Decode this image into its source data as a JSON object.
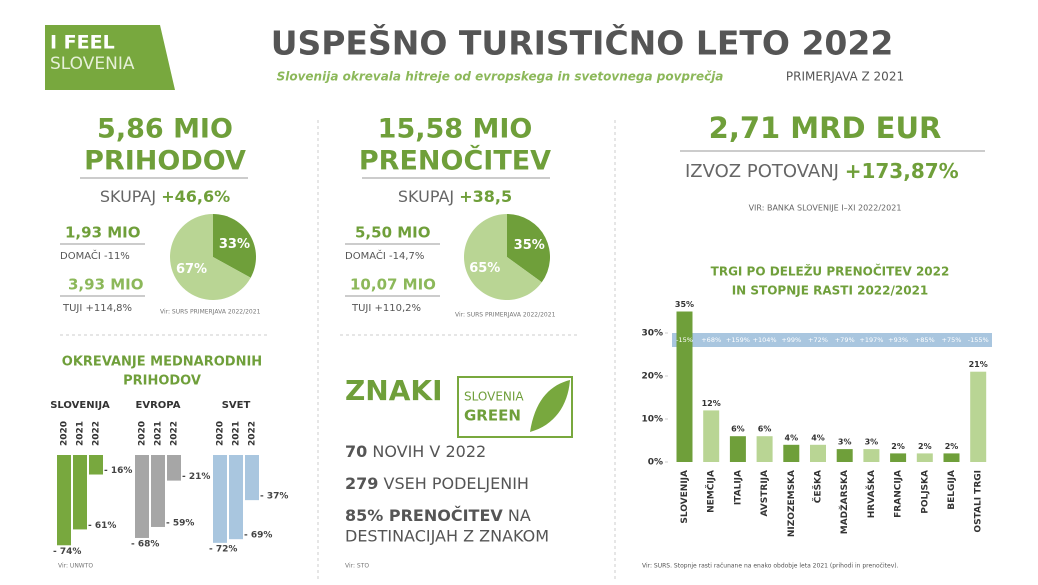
{
  "header": {
    "logo_line1": "I FEEL",
    "logo_line2": "SLOVENIA",
    "title": "USPEŠNO TURISTIČNO LETO 2022",
    "subtitle": "Slovenija okrevala hitreje od evropskega in svetovnega povprečja",
    "compare": "PRIMERJAVA Z 2021"
  },
  "revenue": {
    "line1": "5,86 MIO",
    "line2": "PRIHODOV",
    "total_label": "SKUPAJ",
    "total_value": "+46,6%",
    "domestic_value": "1,93 MIO",
    "domestic_label": "DOMAČI -11%",
    "foreign_value": "3,93 MIO",
    "foreign_label": "TUJI +114,8%",
    "source": "Vir: SURS PRIMERJAVA 2022/2021"
  },
  "nights": {
    "line1": "15,58 MIO",
    "line2": "PRENOČITEV",
    "total_label": "SKUPAJ",
    "total_value": "+38,5",
    "domestic_value": "5,50 MIO",
    "domestic_label": "DOMAČI -14,7%",
    "foreign_value": "10,07 MIO",
    "foreign_label": "TUJI +110,2%",
    "source": "Vir: SURS PRIMERJAVA 2022/2021"
  },
  "export": {
    "line1": "2,71 MRD EUR",
    "label": "IZVOZ POTOVANJ",
    "value": "+173,87%",
    "source": "VIR: BANKA SLOVENIJE I–XI 2022/2021"
  },
  "signs": {
    "title": "ZNAKI",
    "logo_line1": "SLOVENIA",
    "logo_line2": "GREEN",
    "items": [
      {
        "value": "70",
        "text": "NOVIH V 2022"
      },
      {
        "value": "279",
        "text": "VSEH PODELJENIH"
      },
      {
        "value": "85% PRENOČITEV",
        "text": "NA",
        "text2": "DESTINACIJAH Z ZNAKOM"
      }
    ],
    "source": "Vir: STO"
  },
  "chart_data": [
    {
      "type": "pie",
      "values": [
        33,
        67
      ],
      "value_labels": [
        "33%",
        "67%"
      ],
      "colors": [
        "#6f9f3a",
        "#b9d594"
      ]
    },
    {
      "type": "pie",
      "values": [
        35,
        65
      ],
      "value_labels": [
        "35%",
        "65%"
      ],
      "colors": [
        "#6f9f3a",
        "#b9d594"
      ]
    },
    {
      "type": "bar",
      "title": [
        "OKREVANJE MEDNARODNIH",
        "PRIHODOV"
      ],
      "categories": [
        "2020",
        "2021",
        "2022"
      ],
      "series": [
        {
          "name": "SLOVENIJA",
          "color": "#78a83e",
          "values": [
            -74,
            -61,
            -16
          ],
          "value_labels": [
            "- 74%",
            "- 61%",
            "- 16%"
          ]
        },
        {
          "name": "EVROPA",
          "color": "#a6a6a6",
          "values": [
            -68,
            -59,
            -21
          ],
          "value_labels": [
            "- 68%",
            "- 59%",
            "- 21%"
          ]
        },
        {
          "name": "SVET",
          "color": "#a9c6df",
          "values": [
            -72,
            -69,
            -37
          ],
          "value_labels": [
            "- 72%",
            "- 69%",
            "- 37%"
          ]
        }
      ],
      "ylim": [
        -80,
        0
      ],
      "source": "Vir: UNWTO"
    },
    {
      "type": "bar",
      "title": [
        "TRGI PO DELEŽU PRENOČITEV 2022",
        "IN STOPNJE RASTI 2022/2021"
      ],
      "categories": [
        "SLOVENIJA",
        "NEMČIJA",
        "ITALIJA",
        "AVSTRIJA",
        "NIZOZEMSKA",
        "ČEŠKA",
        "MADŽARSKA",
        "HRVAŠKA",
        "FRANCIJA",
        "POLJSKA",
        "BELGIJA",
        "OSTALI TRGI"
      ],
      "values": [
        35,
        12,
        6,
        6,
        4,
        4,
        3,
        3,
        2,
        2,
        2,
        21
      ],
      "value_labels": [
        "35%",
        "12%",
        "6%",
        "6%",
        "4%",
        "4%",
        "3%",
        "3%",
        "2%",
        "2%",
        "2%",
        "21%"
      ],
      "growth_labels": [
        "-15%",
        "+68%",
        "+159%",
        "+104%",
        "+99%",
        "+72%",
        "+79%",
        "+197%",
        "+93%",
        "+85%",
        "+75%",
        "-155%"
      ],
      "colors": [
        "#6f9f3a",
        "#b9d594",
        "#6f9f3a",
        "#b9d594",
        "#6f9f3a",
        "#b9d594",
        "#6f9f3a",
        "#b9d594",
        "#6f9f3a",
        "#b9d594",
        "#6f9f3a",
        "#b9d594"
      ],
      "ylim": [
        0,
        35
      ],
      "yticks": [
        {
          "value": 0,
          "label": "0%"
        },
        {
          "value": 10,
          "label": "10%"
        },
        {
          "value": 20,
          "label": "20%"
        },
        {
          "value": 30,
          "label": "30%"
        }
      ],
      "source": "Vir: SURS. Stopnje rasti računane na enako obdobje leta 2021 (prihodi in prenočitev)."
    }
  ]
}
